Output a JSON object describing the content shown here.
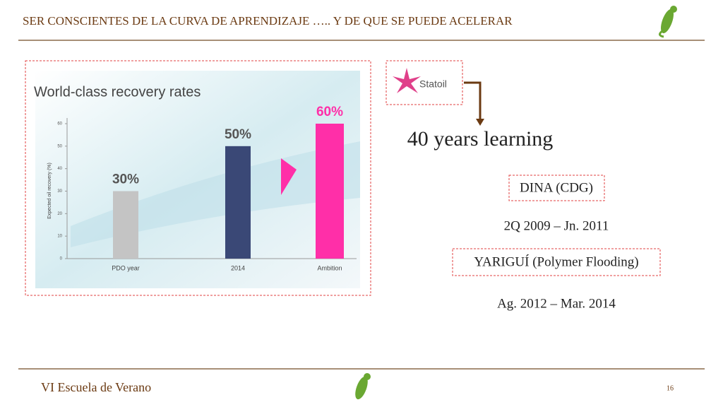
{
  "header": {
    "title": "SER CONSCIENTES DE LA CURVA DE APRENDIZAJE ….. Y DE QUE SE PUEDE ACELERAR"
  },
  "chart": {
    "type": "bar",
    "title": "World-class recovery rates",
    "y_label": "Expected oil recovery (%)",
    "categories": [
      "PDO year",
      "2014",
      "Ambition"
    ],
    "values": [
      30,
      50,
      60
    ],
    "value_labels": [
      "30%",
      "50%",
      "60%"
    ],
    "colors": [
      "#c4c4c4",
      "#3a4876",
      "#ff2fa8"
    ],
    "ylim": [
      0,
      60
    ],
    "yticks": [
      0,
      10,
      20,
      30,
      40,
      50,
      60
    ]
  },
  "logo": {
    "text": "Statoil"
  },
  "headline": "40 years learning",
  "projects": [
    {
      "name": "DINA (CDG)",
      "period": "2Q 2009 – Jn. 2011"
    },
    {
      "name": "YARIGUÍ (Polymer Flooding)",
      "period": "Ag. 2012 – Mar. 2014"
    }
  ],
  "footer": {
    "text": "VI Escuela de Verano",
    "page": "16"
  }
}
